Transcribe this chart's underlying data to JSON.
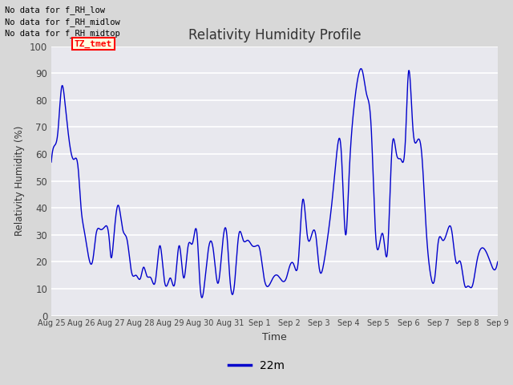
{
  "title": "Relativity Humidity Profile",
  "ylabel": "Relativity Humidity (%)",
  "xlabel": "Time",
  "ylim": [
    0,
    100
  ],
  "legend_label": "22m",
  "line_color": "#0000cc",
  "fig_bg_color": "#d8d8d8",
  "plot_bg_color": "#e8e8ee",
  "no_data_texts": [
    "No data for f_RH_low",
    "No data for f_RH_midlow",
    "No data for f_RH_midtop"
  ],
  "tz_tmet_label": "TZ_tmet",
  "x_tick_labels": [
    "Aug 25",
    "Aug 26",
    "Aug 27",
    "Aug 28",
    "Aug 29",
    "Aug 30",
    "Aug 31",
    "Sep 1",
    "Sep 2",
    "Sep 3",
    "Sep 4",
    "Sep 5",
    "Sep 6",
    "Sep 7",
    "Sep 8",
    "Sep 9"
  ],
  "yticks": [
    0,
    10,
    20,
    30,
    40,
    50,
    60,
    70,
    80,
    90,
    100
  ],
  "keypoints_x": [
    0.0,
    0.1,
    0.22,
    0.35,
    0.45,
    0.6,
    0.75,
    0.9,
    1.0,
    1.1,
    1.25,
    1.4,
    1.5,
    1.65,
    1.8,
    1.95,
    2.0,
    2.1,
    2.25,
    2.4,
    2.55,
    2.7,
    2.85,
    3.0,
    3.1,
    3.2,
    3.35,
    3.5,
    3.65,
    3.8,
    3.95,
    4.0,
    4.15,
    4.3,
    4.45,
    4.6,
    4.75,
    4.9,
    5.0,
    5.15,
    5.3,
    5.45,
    5.6,
    5.75,
    5.9,
    6.0,
    6.15,
    6.3,
    6.45,
    6.6,
    6.75,
    6.9,
    7.0,
    7.15,
    7.3,
    7.45,
    7.6,
    7.75,
    7.9,
    8.0,
    8.15,
    8.3,
    8.45,
    8.6,
    8.75,
    8.9,
    9.0,
    9.15,
    9.3,
    9.45,
    9.6,
    9.75,
    9.9,
    10.0,
    10.15,
    10.3,
    10.45,
    10.6,
    10.75,
    10.9,
    11.0,
    11.15,
    11.3,
    11.45,
    11.6,
    11.75,
    11.9,
    12.0,
    12.15,
    12.3,
    12.45,
    12.6,
    12.75,
    12.9,
    13.0,
    13.15,
    13.3,
    13.45,
    13.6,
    13.75,
    13.9,
    14.0,
    14.15,
    14.3,
    14.45,
    14.6,
    14.75,
    14.9,
    15.0
  ],
  "keypoints_y": [
    57,
    63,
    68,
    85,
    80,
    65,
    58,
    55,
    40,
    32,
    22,
    21,
    30,
    32,
    33,
    28,
    22,
    29,
    41,
    32,
    28,
    16,
    15,
    14,
    18,
    15,
    14,
    13,
    26,
    13,
    13,
    14,
    12,
    26,
    14,
    26,
    27,
    30,
    11,
    12,
    26,
    24,
    12,
    26,
    30,
    14,
    11,
    30,
    28,
    28,
    26,
    26,
    25,
    14,
    11,
    14,
    15,
    13,
    14,
    18,
    19,
    20,
    43,
    30,
    30,
    29,
    18,
    19,
    30,
    44,
    61,
    60,
    30,
    50,
    75,
    88,
    91,
    82,
    70,
    30,
    25,
    30,
    24,
    62,
    60,
    58,
    65,
    90,
    70,
    65,
    60,
    32,
    15,
    15,
    27,
    28,
    31,
    32,
    20,
    20,
    11,
    11,
    11,
    20,
    25,
    24,
    20,
    17,
    20
  ]
}
